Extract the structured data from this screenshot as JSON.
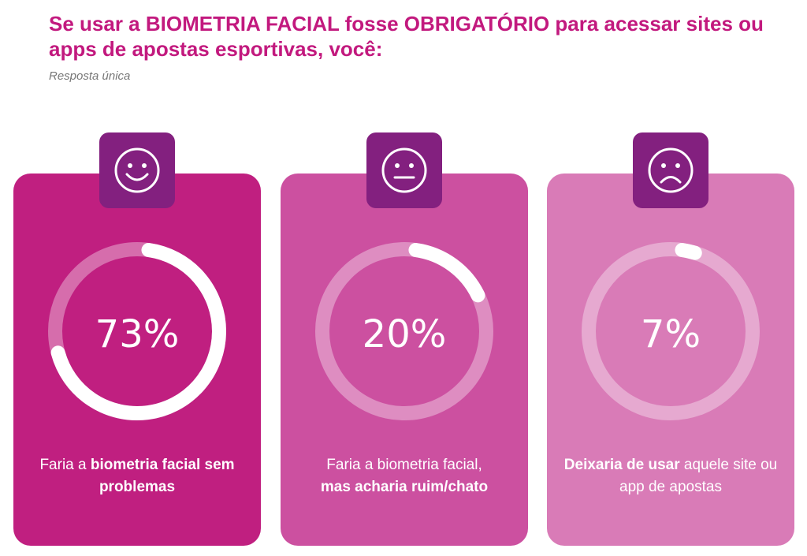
{
  "header": {
    "title": "Se usar a BIOMETRIA FACIAL fosse OBRIGATÓRIO para acessar sites ou apps de apostas esportivas, você:",
    "subtitle": "Resposta única"
  },
  "colors": {
    "title": "#c2197e",
    "icon_box": "#83207f",
    "card_1": "#c01f80",
    "card_2": "#cc50a0",
    "card_3": "#d97bb7"
  },
  "chart_data": {
    "type": "pie",
    "title": "Se usar a BIOMETRIA FACIAL fosse OBRIGATÓRIO para acessar sites ou apps de apostas esportivas, você:",
    "categories": [
      "Faria a biometria facial sem problemas",
      "Faria a biometria facial, mas acharia ruim/chato",
      "Deixaria de usar aquele site ou app de apostas"
    ],
    "values": [
      73,
      20,
      7
    ],
    "unit": "%",
    "icons": [
      "smile-icon",
      "neutral-face-icon",
      "sad-face-icon"
    ]
  },
  "cards": [
    {
      "pct": "73%",
      "caption_a": "Faria a ",
      "caption_b": "biometria facial sem problemas",
      "caption_c": ""
    },
    {
      "pct": "20%",
      "caption_a": "Faria a biometria facial, ",
      "caption_b": "mas acharia ruim/chato",
      "caption_c": ""
    },
    {
      "pct": "7%",
      "caption_a": "",
      "caption_b": "Deixaria de usar",
      "caption_c": " aquele site ou app de apostas"
    }
  ]
}
